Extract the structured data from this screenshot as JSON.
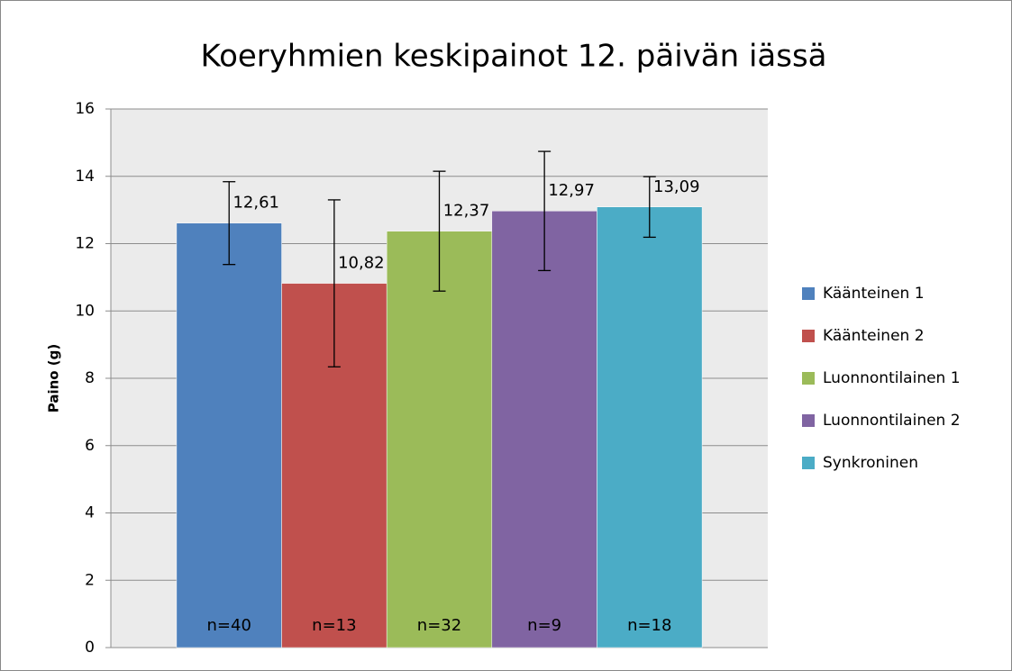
{
  "chart_data": {
    "type": "bar",
    "title": "Koeryhmien keskipainot 12. päivän iässä",
    "y_label": "Paino (g)",
    "categories": [
      null
    ],
    "series": [
      {
        "name": "Käänteinen 1",
        "color": "#4f81bd",
        "values": [
          12.61
        ],
        "value_labels": [
          "12,61"
        ],
        "errors": [
          1.23
        ],
        "annotation": "n=40"
      },
      {
        "name": "Käänteinen 2",
        "color": "#c0504d",
        "values": [
          10.82
        ],
        "value_labels": [
          "10,82"
        ],
        "errors": [
          2.48
        ],
        "annotation": "n=13"
      },
      {
        "name": "Luonnontilainen 1",
        "color": "#9bbb59",
        "values": [
          12.37
        ],
        "value_labels": [
          "12,37"
        ],
        "errors": [
          1.78
        ],
        "annotation": "n=32"
      },
      {
        "name": "Luonnontilainen 2",
        "color": "#8064a2",
        "values": [
          12.97
        ],
        "value_labels": [
          "12,97"
        ],
        "errors": [
          1.77
        ],
        "annotation": "n=9"
      },
      {
        "name": "Synkroninen",
        "color": "#4bacc6",
        "values": [
          13.09
        ],
        "value_labels": [
          "13,09"
        ],
        "errors": [
          0.9
        ],
        "annotation": "n=18"
      }
    ],
    "ylim": [
      0,
      16
    ],
    "yticks": [
      0,
      2,
      4,
      6,
      8,
      10,
      12,
      14,
      16
    ],
    "grid": true,
    "legend": "right"
  }
}
